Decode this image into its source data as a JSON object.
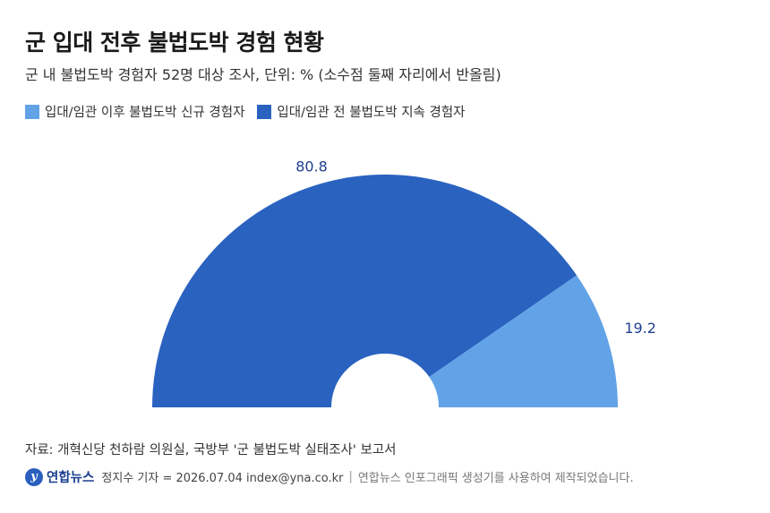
{
  "header": {
    "title": "군 입대 전후 불법도박 경험 현황",
    "subtitle": "군 내 불법도박 경험자 52명 대상 조사, 단위: % (소수점 둘째 자리에서 반올림)"
  },
  "colors": {
    "series_light": "#62a3e8",
    "series_dark": "#2a62c0",
    "label": "#1f3f8f"
  },
  "chart_data": {
    "type": "pie",
    "layout": "half-donut",
    "title": "군 입대 전후 불법도박 경험 현황",
    "legend_position": "top-left",
    "series": [
      {
        "name": "입대/임관 이후 불법도박 신규 경험자",
        "value": 19.2,
        "label": "19.2"
      },
      {
        "name": "입대/임관 전 불법도박 지속 경험자",
        "value": 80.8,
        "label": "80.8"
      }
    ]
  },
  "source": "자료: 개혁신당 천하람 의원실, 국방부 '군 불법도박 실태조사' 보고서",
  "footer": {
    "logo_text": "연합뉴스",
    "credit": "정지수 기자 = 2026.07.04 index@yna.co.kr",
    "note": "연합뉴스 인포그래픽 생성기를 사용하여 제작되었습니다."
  }
}
